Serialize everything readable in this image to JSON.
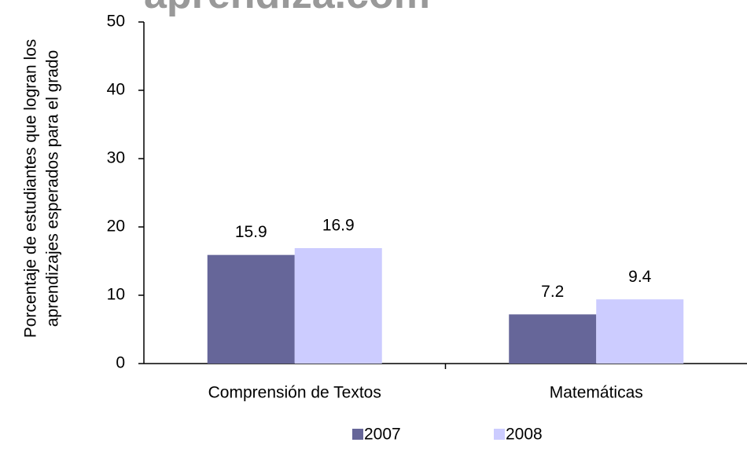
{
  "chart_data": {
    "type": "bar",
    "watermark": "aprendiza.com",
    "y_label": [
      "Porcentaje de estudiantes que logran los",
      "aprendizajes esperados para el grado"
    ],
    "categories": [
      "Comprensión de Textos",
      "Matemáticas"
    ],
    "series": [
      {
        "name": "2007",
        "color": "#666699",
        "values": [
          15.9,
          7.2
        ]
      },
      {
        "name": "2008",
        "color": "#ccccff",
        "values": [
          16.9,
          9.4
        ]
      }
    ],
    "ylim": [
      0,
      50
    ],
    "yticks": [
      0,
      10,
      20,
      30,
      40,
      50
    ],
    "grid": false,
    "legend": "bottom"
  }
}
